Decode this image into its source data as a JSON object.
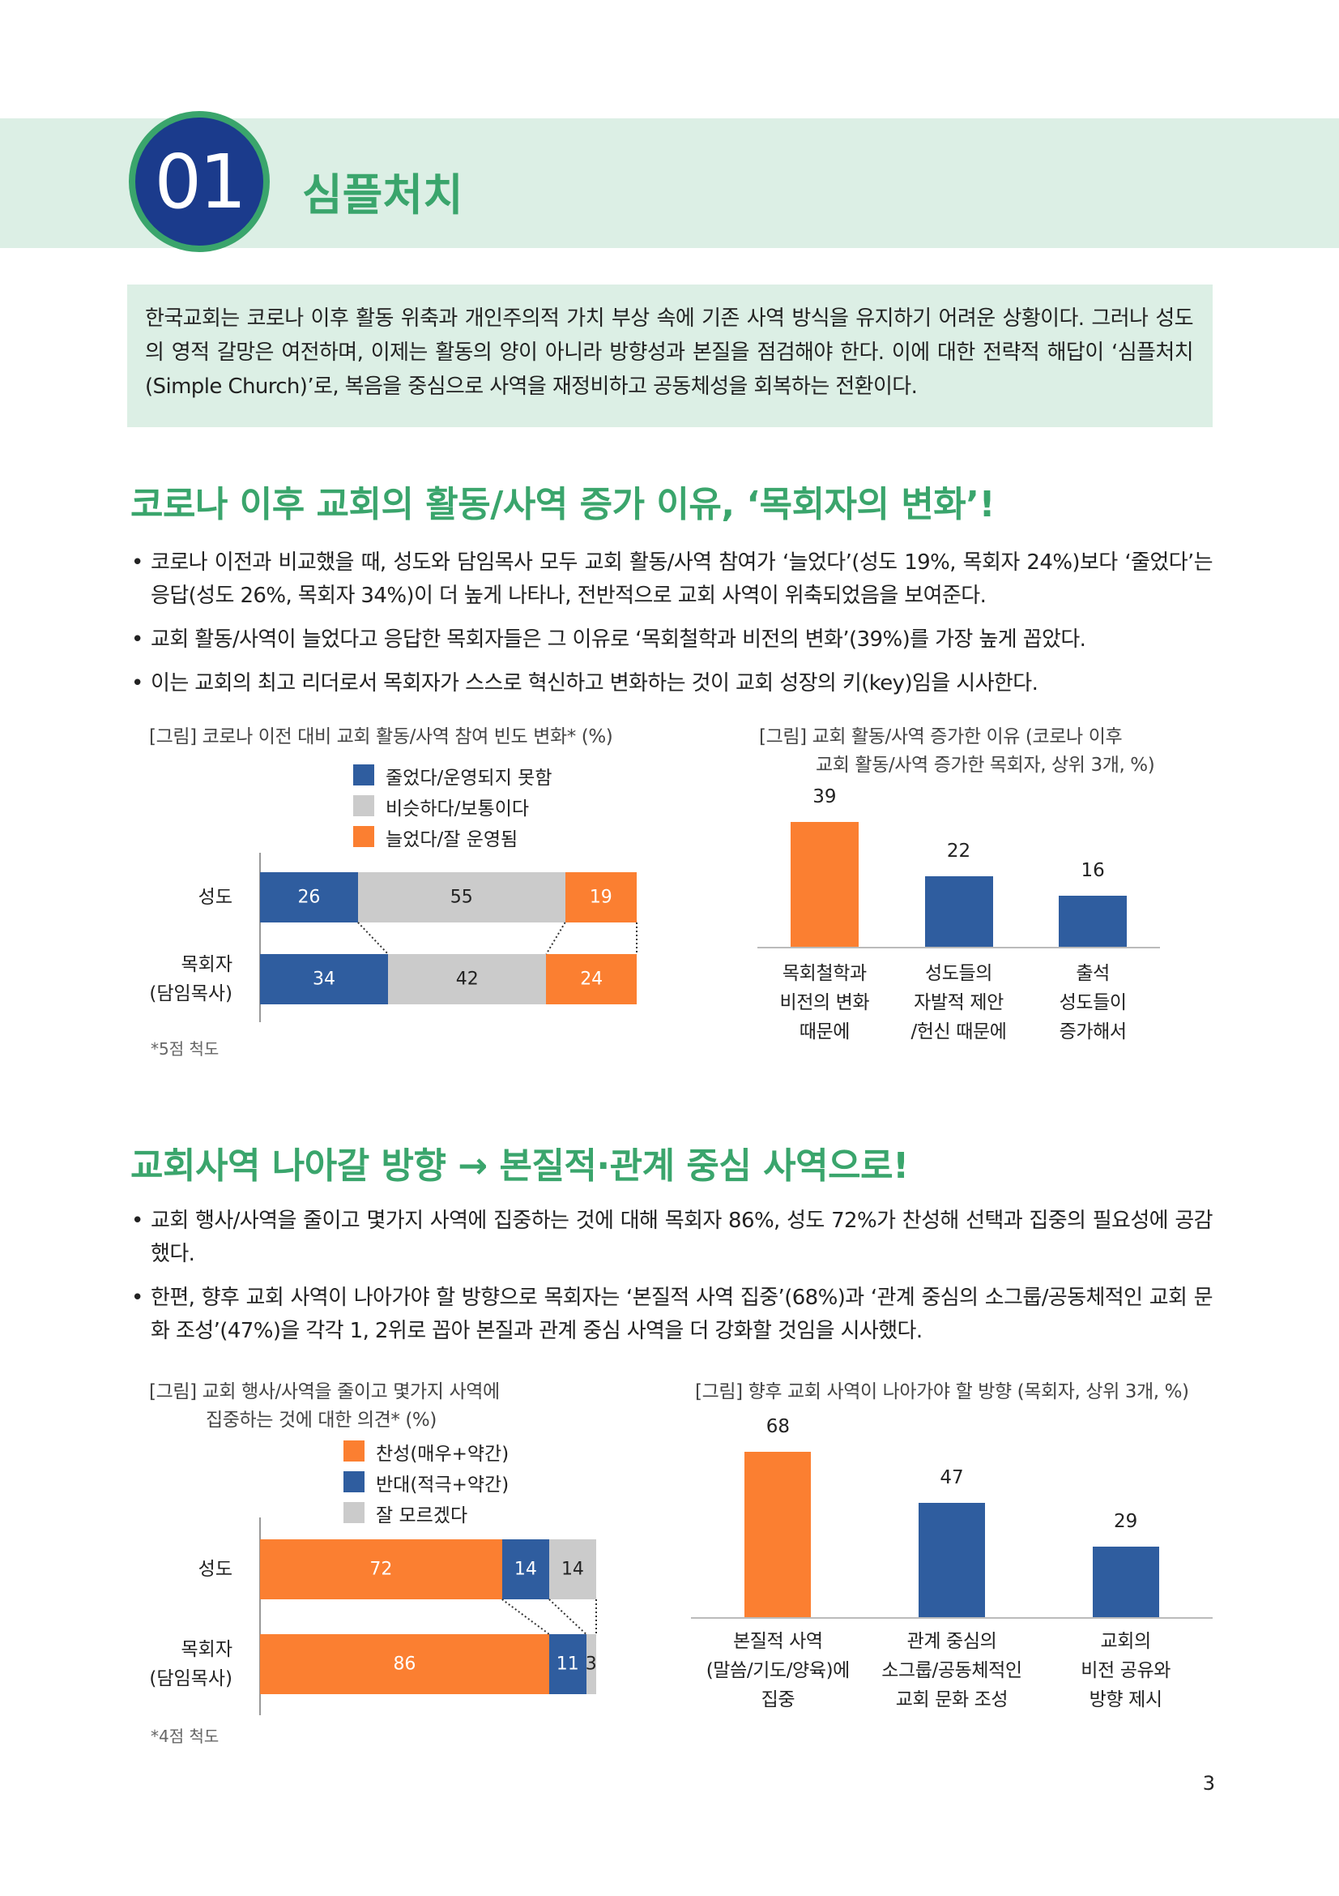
{
  "header": {
    "number": "01",
    "title": "심플처치"
  },
  "intro": "한국교회는 코로나 이후 활동 위축과 개인주의적 가치 부상 속에 기존 사역 방식을 유지하기 어려운 상황이다. 그러나 성도의 영적 갈망은 여전하며, 이제는 활동의 양이 아니라 방향성과 본질을 점검해야 한다. 이에 대한 전략적 해답이 ‘심플처치(Simple Church)’로, 복음을 중심으로 사역을 재정비하고 공동체성을 회복하는 전환이다.",
  "sections": [
    {
      "heading": "코로나 이후 교회의 활동/사역 증가 이유, ‘목회자의 변화’!",
      "bullets": [
        "코로나 이전과 비교했을 때, 성도와 담임목사 모두 교회 활동/사역 참여가 ‘늘었다’(성도 19%, 목회자 24%)보다 ‘줄었다’는 응답(성도 26%, 목회자 34%)이 더 높게 나타나, 전반적으로 교회 사역이 위축되었음을 보여준다.",
        "교회 활동/사역이 늘었다고 응답한 목회자들은 그 이유로 ‘목회철학과 비전의 변화’(39%)를 가장 높게 꼽았다.",
        "이는 교회의 최고 리더로서 목회자가 스스로 혁신하고 변화하는 것이 교회 성장의 키(key)임을 시사한다."
      ]
    },
    {
      "heading": "교회사역 나아갈 방향 → 본질적·관계 중심 사역으로!",
      "bullets": [
        "교회 행사/사역을 줄이고 몇가지 사역에 집중하는 것에 대해 목회자 86%, 성도 72%가 찬성해 선택과 집중의 필요성에 공감했다.",
        "한편, 향후 교회 사역이 나아가야 할 방향으로 목회자는 ‘본질적 사역 집중’(68%)과 ‘관계 중심의 소그룹/공동체적인 교회 문화 조성’(47%)을 각각 1, 2위로 꼽아 본질과 관계 중심 사역을 더 강화할 것임을 시사했다."
      ]
    }
  ],
  "chart_data": [
    {
      "type": "stacked_bar_h",
      "title": "[그림] 코로나 이전 대비 교회 활동/사역 참여 빈도 변화* (%)",
      "categories": [
        "성도",
        "목회자\n(담임목사)"
      ],
      "series": [
        {
          "name": "줄었다/운영되지 못함",
          "color": "#2f5d9f",
          "values": [
            26,
            34
          ]
        },
        {
          "name": "비슷하다/보통이다",
          "color": "#cbcbcb",
          "values": [
            55,
            42
          ]
        },
        {
          "name": "늘었다/잘 운영됨",
          "color": "#fb7f31",
          "values": [
            19,
            24
          ]
        }
      ],
      "note": "*5점 척도"
    },
    {
      "type": "bar",
      "title": "[그림] 교회 활동/사역 증가한 이유 (코로나 이후\n교회 활동/사역 증가한 목회자, 상위 3개, %)",
      "categories": [
        "목회철학과\n비전의 변화\n때문에",
        "성도들의\n자발적 제안\n/헌신 때문에",
        "출석\n성도들이\n증가해서"
      ],
      "values": [
        39,
        22,
        16
      ],
      "colors": [
        "#fb7f31",
        "#2f5d9f",
        "#2f5d9f"
      ]
    },
    {
      "type": "stacked_bar_h",
      "title": "[그림] 교회 행사/사역을 줄이고 몇가지 사역에\n집중하는 것에 대한 의견* (%)",
      "categories": [
        "성도",
        "목회자\n(담임목사)"
      ],
      "series": [
        {
          "name": "찬성(매우+약간)",
          "color": "#fb7f31",
          "values": [
            72,
            86
          ]
        },
        {
          "name": "반대(적극+약간)",
          "color": "#2f5d9f",
          "values": [
            14,
            11
          ]
        },
        {
          "name": "잘 모르겠다",
          "color": "#cbcbcb",
          "values": [
            14,
            3
          ]
        }
      ],
      "note": "*4점 척도"
    },
    {
      "type": "bar",
      "title": "[그림] 향후 교회 사역이 나아가야 할 방향 (목회자, 상위 3개, %)",
      "categories": [
        "본질적 사역\n(말씀/기도/양육)에\n집중",
        "관계 중심의\n소그룹/공동체적인\n교회 문화 조성",
        "교회의\n비전 공유와\n방향 제시"
      ],
      "values": [
        68,
        47,
        29
      ],
      "colors": [
        "#fb7f31",
        "#2f5d9f",
        "#2f5d9f"
      ]
    }
  ],
  "page_number": "3"
}
